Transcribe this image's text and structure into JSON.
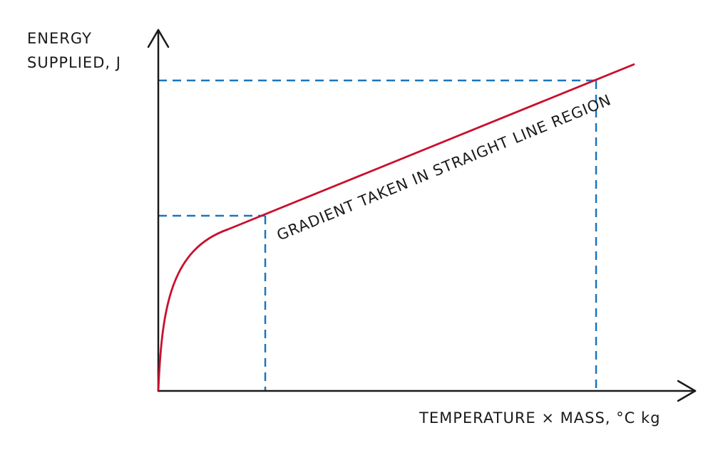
{
  "y_axis_label": {
    "lines": [
      "ENERGY",
      "SUPPLIED, J"
    ]
  },
  "x_axis_label": "TEMPERATURE × MASS, °C kg",
  "annotation": "GRADIENT TAKEN IN STRAIGHT LINE REGION"
}
